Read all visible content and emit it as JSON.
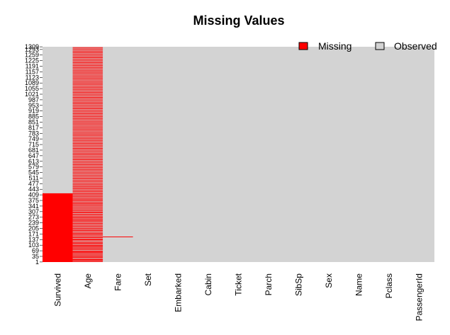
{
  "chart_data": {
    "type": "heatmap",
    "title": "Missing Values",
    "xlabel": "",
    "ylabel": "",
    "variables": [
      "Survived",
      "Age",
      "Fare",
      "Set",
      "Embarked",
      "Cabin",
      "Ticket",
      "Parch",
      "SibSp",
      "Sex",
      "Name",
      "Pclass",
      "PassengerId"
    ],
    "row_count": 1309,
    "ytick_labels": [
      "1",
      "35",
      "69",
      "103",
      "137",
      "171",
      "205",
      "239",
      "273",
      "307",
      "341",
      "375",
      "409",
      "443",
      "477",
      "511",
      "545",
      "579",
      "613",
      "647",
      "681",
      "715",
      "749",
      "783",
      "817",
      "851",
      "885",
      "919",
      "953",
      "987",
      "1021",
      "1055",
      "1089",
      "1123",
      "1157",
      "1191",
      "1225",
      "1259",
      "1293",
      "1309"
    ],
    "missing": {
      "Survived": {
        "ranges": [
          [
            1,
            418
          ]
        ]
      },
      "Age": {
        "rows": [
          3,
          9,
          14,
          17,
          26,
          31,
          38,
          44,
          52,
          57,
          63,
          68,
          77,
          82,
          90,
          95,
          101,
          108,
          115,
          120,
          129,
          136,
          141,
          149,
          155,
          163,
          170,
          176,
          184,
          192,
          198,
          205,
          213,
          220,
          228,
          235,
          243,
          250,
          256,
          263,
          270,
          276,
          284,
          291,
          299,
          305,
          312,
          320,
          327,
          335,
          342,
          350,
          356,
          363,
          371,
          378,
          384,
          392,
          399,
          407,
          414,
          421,
          429,
          436,
          444,
          451,
          458,
          466,
          473,
          481,
          489,
          497,
          505,
          512,
          520,
          528,
          536,
          544,
          552,
          560,
          567,
          575,
          583,
          591,
          598,
          606,
          614,
          622,
          629,
          637,
          645,
          653,
          660,
          668,
          676,
          684,
          691,
          699,
          707,
          715,
          722,
          730,
          738,
          746,
          753,
          761,
          769,
          777,
          784,
          792,
          800,
          808,
          815,
          823,
          831,
          839,
          846,
          854,
          862,
          870,
          877,
          885,
          893,
          901,
          908,
          916,
          924,
          932,
          939,
          947,
          955,
          963,
          970,
          978,
          986,
          994,
          1001,
          1009,
          1017,
          1025,
          1032,
          1040,
          1048,
          1056,
          1063,
          1071,
          1079,
          1087,
          1094,
          1102,
          1110,
          1118,
          1125,
          1133,
          1141,
          1149,
          1156,
          1164,
          1172,
          1180,
          1187,
          1195,
          1203,
          1211,
          1218,
          1226,
          1234,
          1242,
          1249,
          1257,
          1265,
          1273,
          1280,
          1288,
          1296,
          1304
        ]
      },
      "Fare": {
        "rows": [
          153
        ]
      }
    },
    "legend": {
      "position": "top-right",
      "entries": [
        {
          "label": "Missing",
          "color": "#ff0000"
        },
        {
          "label": "Observed",
          "color": "#d3d3d3"
        }
      ]
    },
    "colors": {
      "missing": "#ff0000",
      "observed": "#d3d3d3"
    },
    "grid": false
  }
}
